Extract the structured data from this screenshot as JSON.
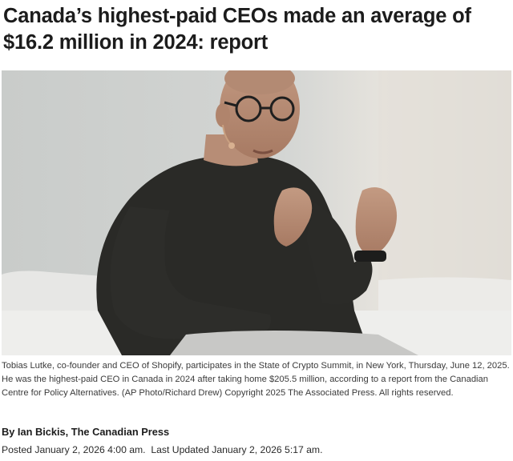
{
  "article": {
    "headline": "Canada’s highest-paid CEOs made an average of $16.2 million in 2024: report",
    "photo": {
      "caption": "Tobias Lutke, co-founder and CEO of Shopify, participates in the State of Crypto Summit, in New York, Thursday, June 12, 2025. He was the highest-paid CEO in Canada in 2024 after taking home $205.5 million, according to a report from the Canadian Centre for Policy Alternatives. (AP Photo/Richard Drew) Copyright 2025 The Associated Press. All rights reserved."
    },
    "byline": "By Ian Bickis, The Canadian Press",
    "posted_label": "Posted",
    "posted_date": "January 2, 2026 4:00 am.",
    "updated_label": "Last Updated",
    "updated_date": "January 2, 2026 5:17 am."
  }
}
